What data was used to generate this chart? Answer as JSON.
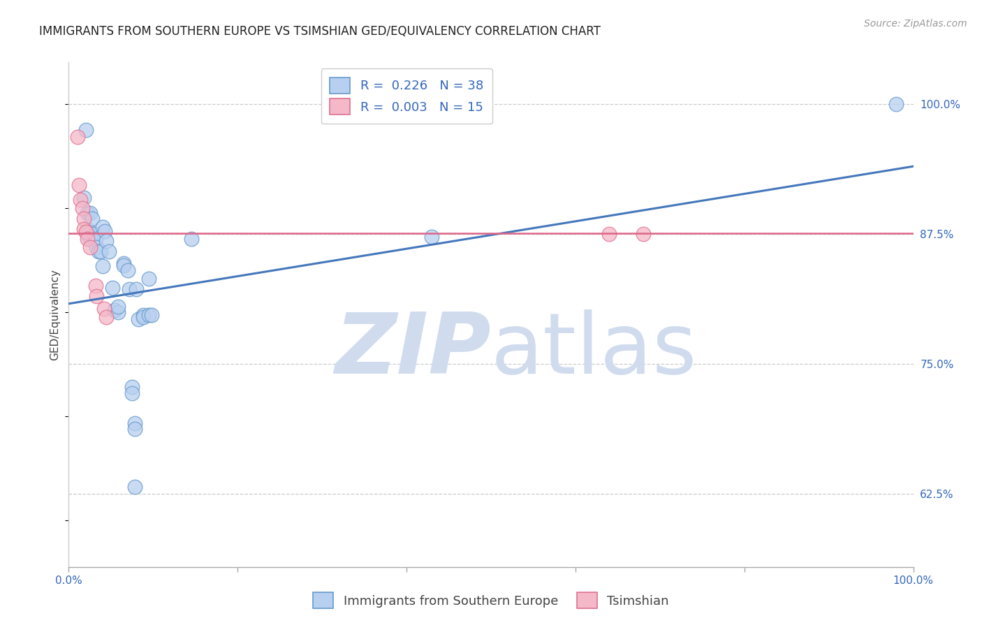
{
  "title": "IMMIGRANTS FROM SOUTHERN EUROPE VS TSIMSHIAN GED/EQUIVALENCY CORRELATION CHART",
  "source": "Source: ZipAtlas.com",
  "ylabel": "GED/Equivalency",
  "yticks": [
    0.625,
    0.75,
    0.875,
    1.0
  ],
  "ytick_labels": [
    "62.5%",
    "75.0%",
    "87.5%",
    "100.0%"
  ],
  "xrange": [
    0.0,
    1.0
  ],
  "yrange": [
    0.555,
    1.04
  ],
  "blue_scatter": [
    [
      0.02,
      0.975
    ],
    [
      0.022,
      0.895
    ],
    [
      0.018,
      0.91
    ],
    [
      0.025,
      0.895
    ],
    [
      0.022,
      0.88
    ],
    [
      0.022,
      0.875
    ],
    [
      0.025,
      0.87
    ],
    [
      0.028,
      0.89
    ],
    [
      0.03,
      0.875
    ],
    [
      0.032,
      0.87
    ],
    [
      0.033,
      0.862
    ],
    [
      0.035,
      0.858
    ],
    [
      0.04,
      0.882
    ],
    [
      0.038,
      0.858
    ],
    [
      0.04,
      0.844
    ],
    [
      0.043,
      0.878
    ],
    [
      0.044,
      0.868
    ],
    [
      0.048,
      0.858
    ],
    [
      0.052,
      0.823
    ],
    [
      0.054,
      0.802
    ],
    [
      0.058,
      0.8
    ],
    [
      0.058,
      0.805
    ],
    [
      0.065,
      0.847
    ],
    [
      0.065,
      0.845
    ],
    [
      0.07,
      0.84
    ],
    [
      0.072,
      0.822
    ],
    [
      0.08,
      0.822
    ],
    [
      0.082,
      0.793
    ],
    [
      0.088,
      0.797
    ],
    [
      0.088,
      0.795
    ],
    [
      0.095,
      0.797
    ],
    [
      0.095,
      0.832
    ],
    [
      0.098,
      0.797
    ],
    [
      0.075,
      0.728
    ],
    [
      0.075,
      0.722
    ],
    [
      0.078,
      0.693
    ],
    [
      0.078,
      0.688
    ],
    [
      0.078,
      0.632
    ],
    [
      0.145,
      0.87
    ],
    [
      0.43,
      0.872
    ],
    [
      0.98,
      1.0
    ]
  ],
  "pink_scatter": [
    [
      0.01,
      0.968
    ],
    [
      0.012,
      0.922
    ],
    [
      0.014,
      0.908
    ],
    [
      0.016,
      0.9
    ],
    [
      0.018,
      0.89
    ],
    [
      0.018,
      0.88
    ],
    [
      0.02,
      0.877
    ],
    [
      0.022,
      0.87
    ],
    [
      0.025,
      0.862
    ],
    [
      0.032,
      0.825
    ],
    [
      0.033,
      0.815
    ],
    [
      0.042,
      0.803
    ],
    [
      0.044,
      0.795
    ],
    [
      0.64,
      0.875
    ],
    [
      0.68,
      0.875
    ]
  ],
  "blue_line_x": [
    0.0,
    1.0
  ],
  "blue_line_y": [
    0.808,
    0.94
  ],
  "pink_line_x": [
    0.0,
    1.0
  ],
  "pink_line_y": [
    0.876,
    0.876
  ],
  "blue_scatter_color": "#b8d0f0",
  "blue_edge_color": "#6699cc",
  "pink_scatter_color": "#f5b8c8",
  "pink_edge_color": "#e07090",
  "blue_line_color": "#4477bb",
  "pink_line_color": "#dd6688",
  "grid_color": "#cccccc",
  "watermark_zip": "ZIP",
  "watermark_atlas": "atlas",
  "watermark_color": "#d0dcee",
  "title_fontsize": 12,
  "source_fontsize": 10,
  "axis_label_fontsize": 11,
  "tick_fontsize": 11,
  "legend_fontsize": 13
}
